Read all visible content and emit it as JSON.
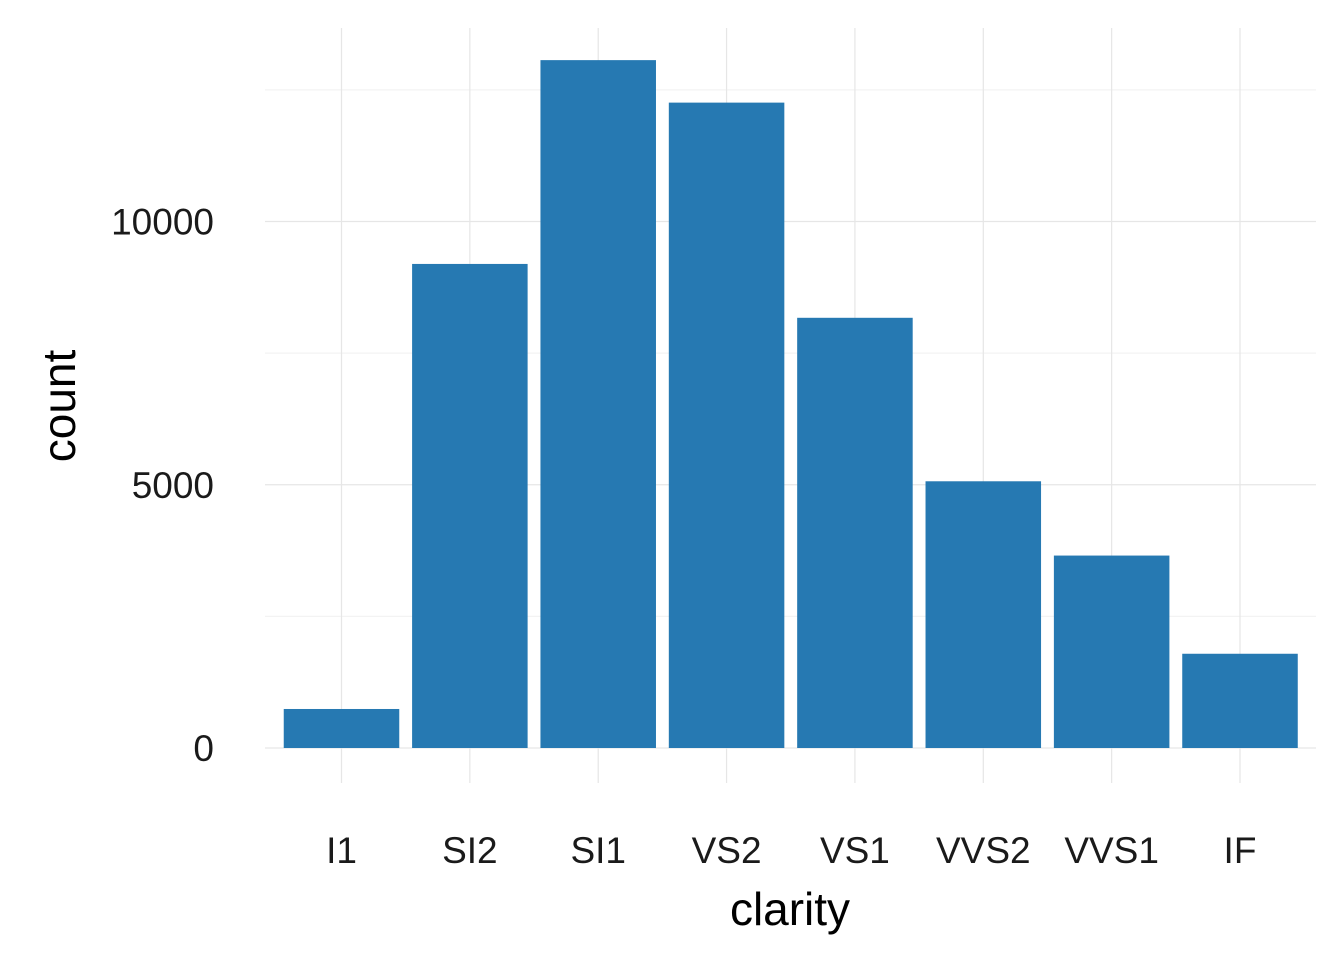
{
  "chart_data": {
    "type": "bar",
    "categories": [
      "I1",
      "SI2",
      "SI1",
      "VS2",
      "VS1",
      "VVS2",
      "VVS1",
      "IF"
    ],
    "values": [
      741,
      9194,
      13065,
      12258,
      8171,
      5066,
      3655,
      1790
    ],
    "xlabel": "clarity",
    "ylabel": "count",
    "ylim": [
      0,
      14000
    ],
    "yticks": [
      0,
      5000,
      10000
    ],
    "ytick_labels": [
      "0",
      "5000",
      "10000"
    ],
    "grid": true,
    "legend": "none",
    "bar_color": "#2679B2"
  }
}
